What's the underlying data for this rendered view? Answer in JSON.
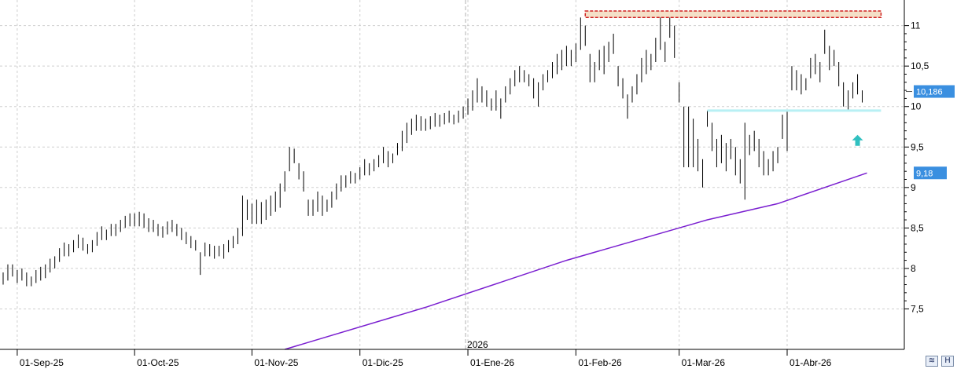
{
  "colors": {
    "bar": "#000000",
    "moving_average": "#7a1fd0",
    "resistance_box": "#d02020",
    "support_line": "#b8f0f4",
    "arrow": "#30c0c0",
    "price_tag": "#3a8fe0",
    "grid": "#cfcfcf"
  },
  "icons": {
    "zoom_button": "zoom-icon",
    "save_button": "save-h-icon"
  },
  "buttons": {
    "save_label": "H"
  },
  "chart_data": {
    "type": "ohlc",
    "title": "",
    "xlabel": "",
    "ylabel": "",
    "ylim": [
      7.0,
      11.2
    ],
    "y_ticks": [
      "7,5",
      "8",
      "8,5",
      "9",
      "9,5",
      "10",
      "10,5",
      "11"
    ],
    "y_tick_values": [
      7.5,
      8,
      8.5,
      9,
      9.5,
      10,
      10.5,
      11
    ],
    "x_ticks": [
      "01-Sep-25",
      "01-Oct-25",
      "01-Nov-25",
      "01-Dic-25",
      "01-Ene-26",
      "01-Feb-26",
      "01-Mar-26",
      "01-Abr-26"
    ],
    "year_label": "2026",
    "grid": true,
    "last_price": {
      "label": "10,186",
      "value": 10.186
    },
    "moving_average_label": {
      "label": "9,18",
      "value": 9.18
    },
    "bars": [
      [
        7.95,
        7.8
      ],
      [
        8.05,
        7.85
      ],
      [
        8.05,
        7.9
      ],
      [
        7.98,
        7.82
      ],
      [
        8.0,
        7.85
      ],
      [
        7.95,
        7.78
      ],
      [
        7.9,
        7.78
      ],
      [
        7.98,
        7.82
      ],
      [
        8.02,
        7.85
      ],
      [
        8.05,
        7.88
      ],
      [
        8.12,
        7.95
      ],
      [
        8.15,
        8.0
      ],
      [
        8.25,
        8.08
      ],
      [
        8.32,
        8.15
      ],
      [
        8.3,
        8.15
      ],
      [
        8.35,
        8.2
      ],
      [
        8.42,
        8.25
      ],
      [
        8.38,
        8.22
      ],
      [
        8.3,
        8.18
      ],
      [
        8.35,
        8.2
      ],
      [
        8.45,
        8.28
      ],
      [
        8.52,
        8.35
      ],
      [
        8.48,
        8.35
      ],
      [
        8.55,
        8.4
      ],
      [
        8.55,
        8.4
      ],
      [
        8.6,
        8.45
      ],
      [
        8.65,
        8.5
      ],
      [
        8.68,
        8.52
      ],
      [
        8.68,
        8.52
      ],
      [
        8.7,
        8.52
      ],
      [
        8.68,
        8.5
      ],
      [
        8.62,
        8.45
      ],
      [
        8.6,
        8.45
      ],
      [
        8.55,
        8.4
      ],
      [
        8.52,
        8.38
      ],
      [
        8.58,
        8.42
      ],
      [
        8.6,
        8.45
      ],
      [
        8.55,
        8.4
      ],
      [
        8.5,
        8.35
      ],
      [
        8.45,
        8.3
      ],
      [
        8.4,
        8.25
      ],
      [
        8.35,
        8.22
      ],
      [
        8.2,
        7.92
      ],
      [
        8.32,
        8.15
      ],
      [
        8.3,
        8.15
      ],
      [
        8.28,
        8.12
      ],
      [
        8.28,
        8.15
      ],
      [
        8.3,
        8.12
      ],
      [
        8.35,
        8.2
      ],
      [
        8.4,
        8.25
      ],
      [
        8.5,
        8.3
      ],
      [
        8.9,
        8.4
      ],
      [
        8.85,
        8.6
      ],
      [
        8.8,
        8.55
      ],
      [
        8.85,
        8.55
      ],
      [
        8.82,
        8.55
      ],
      [
        8.85,
        8.6
      ],
      [
        8.9,
        8.65
      ],
      [
        8.95,
        8.7
      ],
      [
        9.05,
        8.75
      ],
      [
        9.2,
        8.95
      ],
      [
        9.5,
        9.2
      ],
      [
        9.48,
        9.3
      ],
      [
        9.3,
        9.1
      ],
      [
        9.2,
        8.95
      ],
      [
        8.85,
        8.65
      ],
      [
        8.85,
        8.65
      ],
      [
        8.95,
        8.7
      ],
      [
        8.9,
        8.65
      ],
      [
        8.85,
        8.7
      ],
      [
        8.95,
        8.75
      ],
      [
        9.05,
        8.85
      ],
      [
        9.15,
        8.95
      ],
      [
        9.15,
        9.0
      ],
      [
        9.2,
        9.05
      ],
      [
        9.18,
        9.05
      ],
      [
        9.25,
        9.1
      ],
      [
        9.35,
        9.15
      ],
      [
        9.3,
        9.15
      ],
      [
        9.35,
        9.2
      ],
      [
        9.4,
        9.25
      ],
      [
        9.5,
        9.3
      ],
      [
        9.45,
        9.25
      ],
      [
        9.42,
        9.3
      ],
      [
        9.55,
        9.4
      ],
      [
        9.7,
        9.45
      ],
      [
        9.8,
        9.55
      ],
      [
        9.85,
        9.65
      ],
      [
        9.9,
        9.7
      ],
      [
        9.88,
        9.7
      ],
      [
        9.85,
        9.7
      ],
      [
        9.88,
        9.72
      ],
      [
        9.92,
        9.75
      ],
      [
        9.9,
        9.75
      ],
      [
        9.92,
        9.78
      ],
      [
        9.95,
        9.8
      ],
      [
        9.9,
        9.78
      ],
      [
        9.95,
        9.8
      ],
      [
        10.0,
        9.85
      ],
      [
        10.1,
        9.9
      ],
      [
        10.2,
        9.95
      ],
      [
        10.35,
        10.05
      ],
      [
        10.25,
        10.05
      ],
      [
        10.2,
        10.0
      ],
      [
        10.1,
        9.95
      ],
      [
        10.2,
        9.95
      ],
      [
        10.1,
        9.85
      ],
      [
        10.25,
        10.05
      ],
      [
        10.35,
        10.15
      ],
      [
        10.45,
        10.25
      ],
      [
        10.5,
        10.3
      ],
      [
        10.45,
        10.3
      ],
      [
        10.4,
        10.25
      ],
      [
        10.35,
        10.1
      ],
      [
        10.3,
        10.0
      ],
      [
        10.4,
        10.2
      ],
      [
        10.45,
        10.3
      ],
      [
        10.55,
        10.35
      ],
      [
        10.65,
        10.4
      ],
      [
        10.7,
        10.45
      ],
      [
        10.75,
        10.5
      ],
      [
        10.7,
        10.5
      ],
      [
        10.78,
        10.55
      ],
      [
        11.1,
        10.7
      ],
      [
        11.0,
        10.75
      ],
      [
        10.65,
        10.3
      ],
      [
        10.55,
        10.3
      ],
      [
        10.7,
        10.45
      ],
      [
        10.75,
        10.4
      ],
      [
        10.8,
        10.55
      ],
      [
        10.9,
        10.65
      ],
      [
        10.5,
        10.25
      ],
      [
        10.35,
        10.1
      ],
      [
        10.15,
        9.85
      ],
      [
        10.25,
        10.05
      ],
      [
        10.4,
        10.15
      ],
      [
        10.6,
        10.3
      ],
      [
        10.7,
        10.4
      ],
      [
        10.65,
        10.45
      ],
      [
        10.85,
        10.55
      ],
      [
        11.15,
        10.7
      ],
      [
        10.8,
        10.55
      ],
      [
        11.1,
        10.85
      ],
      [
        11.0,
        10.6
      ],
      [
        10.3,
        10.05
      ],
      [
        10.0,
        9.25
      ],
      [
        10.0,
        9.25
      ],
      [
        9.85,
        9.25
      ],
      [
        9.6,
        9.2
      ],
      [
        9.35,
        9.0
      ],
      [
        9.95,
        9.75
      ],
      [
        9.8,
        9.45
      ],
      [
        9.6,
        9.25
      ],
      [
        9.65,
        9.3
      ],
      [
        9.55,
        9.2
      ],
      [
        9.6,
        9.35
      ],
      [
        9.5,
        9.15
      ],
      [
        9.35,
        9.05
      ],
      [
        9.8,
        8.85
      ],
      [
        9.65,
        9.4
      ],
      [
        9.7,
        9.45
      ],
      [
        9.6,
        9.25
      ],
      [
        9.45,
        9.15
      ],
      [
        9.35,
        9.15
      ],
      [
        9.45,
        9.2
      ],
      [
        9.5,
        9.3
      ],
      [
        9.9,
        9.6
      ],
      [
        9.95,
        9.45
      ],
      [
        10.5,
        10.2
      ],
      [
        10.45,
        10.2
      ],
      [
        10.4,
        10.15
      ],
      [
        10.35,
        10.2
      ],
      [
        10.6,
        10.35
      ],
      [
        10.65,
        10.4
      ],
      [
        10.55,
        10.3
      ],
      [
        10.95,
        10.65
      ],
      [
        10.75,
        10.45
      ],
      [
        10.7,
        10.5
      ],
      [
        10.55,
        10.25
      ],
      [
        10.3,
        10.0
      ],
      [
        10.2,
        9.95
      ],
      [
        10.3,
        10.1
      ],
      [
        10.4,
        10.15
      ],
      [
        10.2,
        10.05
      ]
    ],
    "moving_average": {
      "x_index": [
        60,
        90,
        120,
        150,
        165,
        184
      ],
      "values": [
        7.0,
        7.52,
        8.1,
        8.6,
        8.8,
        9.18
      ]
    },
    "resistance_zone": {
      "y_low": 11.1,
      "y_high": 11.18,
      "x_start_index": 124,
      "x_end_index": 187
    },
    "support_line": {
      "value": 9.95,
      "x_start_index": 150,
      "x_end_index": 187
    },
    "arrow_hint": {
      "x_index": 182,
      "value": 9.65
    }
  }
}
